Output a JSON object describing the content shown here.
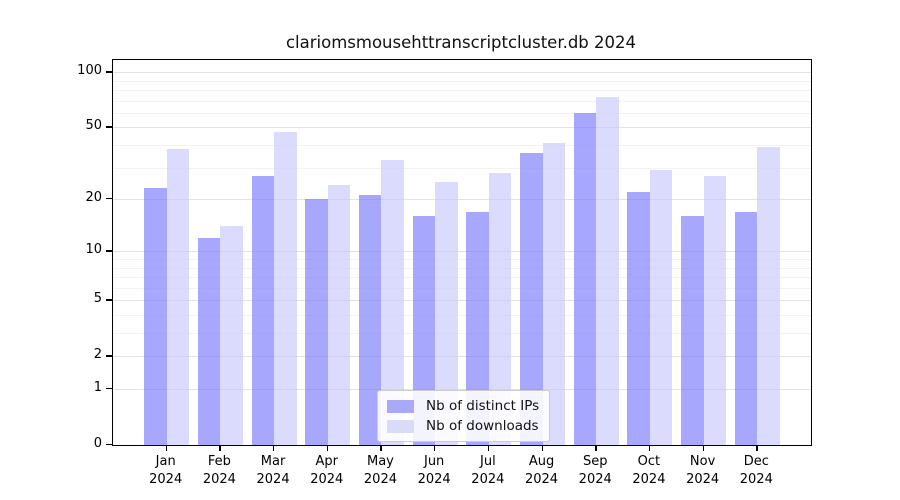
{
  "title": "clariomsmousehttranscriptcluster.db 2024",
  "chart_data": {
    "type": "bar",
    "title": "clariomsmousehttranscriptcluster.db 2024",
    "categories": [
      "Jan 2024",
      "Feb 2024",
      "Mar 2024",
      "Apr 2024",
      "May 2024",
      "Jun 2024",
      "Jul 2024",
      "Aug 2024",
      "Sep 2024",
      "Oct 2024",
      "Nov 2024",
      "Dec 2024"
    ],
    "series": [
      {
        "name": "Nb of distinct IPs",
        "color": "#a9a9f9",
        "values": [
          23,
          12,
          27,
          20,
          21,
          16,
          17,
          36,
          60,
          22,
          16,
          17
        ]
      },
      {
        "name": "Nb of downloads",
        "color": "#dadaf9",
        "values": [
          38,
          14,
          47,
          24,
          33,
          25,
          28,
          41,
          73,
          29,
          27,
          39
        ]
      }
    ],
    "xlabel": "",
    "ylabel": "",
    "yscale": "log1p",
    "ylim": [
      0,
      116.5
    ],
    "yticks_major": [
      0,
      1,
      2,
      5,
      10,
      20,
      50,
      100
    ],
    "yticks_minor": [
      3,
      4,
      6,
      7,
      8,
      9,
      30,
      40,
      60,
      70,
      80,
      90
    ],
    "grid": "horizontal",
    "legend": {
      "position": "bottom-center-inside",
      "items": [
        "Nb of distinct IPs",
        "Nb of downloads"
      ]
    }
  },
  "colors": {
    "bar_ips": "#a9a9f9",
    "bar_ips_fill": "rgba(120,120,252,0.65)",
    "bar_downloads": "#dadaf9",
    "bar_downloads_fill": "rgba(200,200,252,0.65)",
    "grid_major": "#e3e3e3",
    "grid_minor": "#f2f2f2",
    "axis": "#000000",
    "background": "#ffffff"
  }
}
